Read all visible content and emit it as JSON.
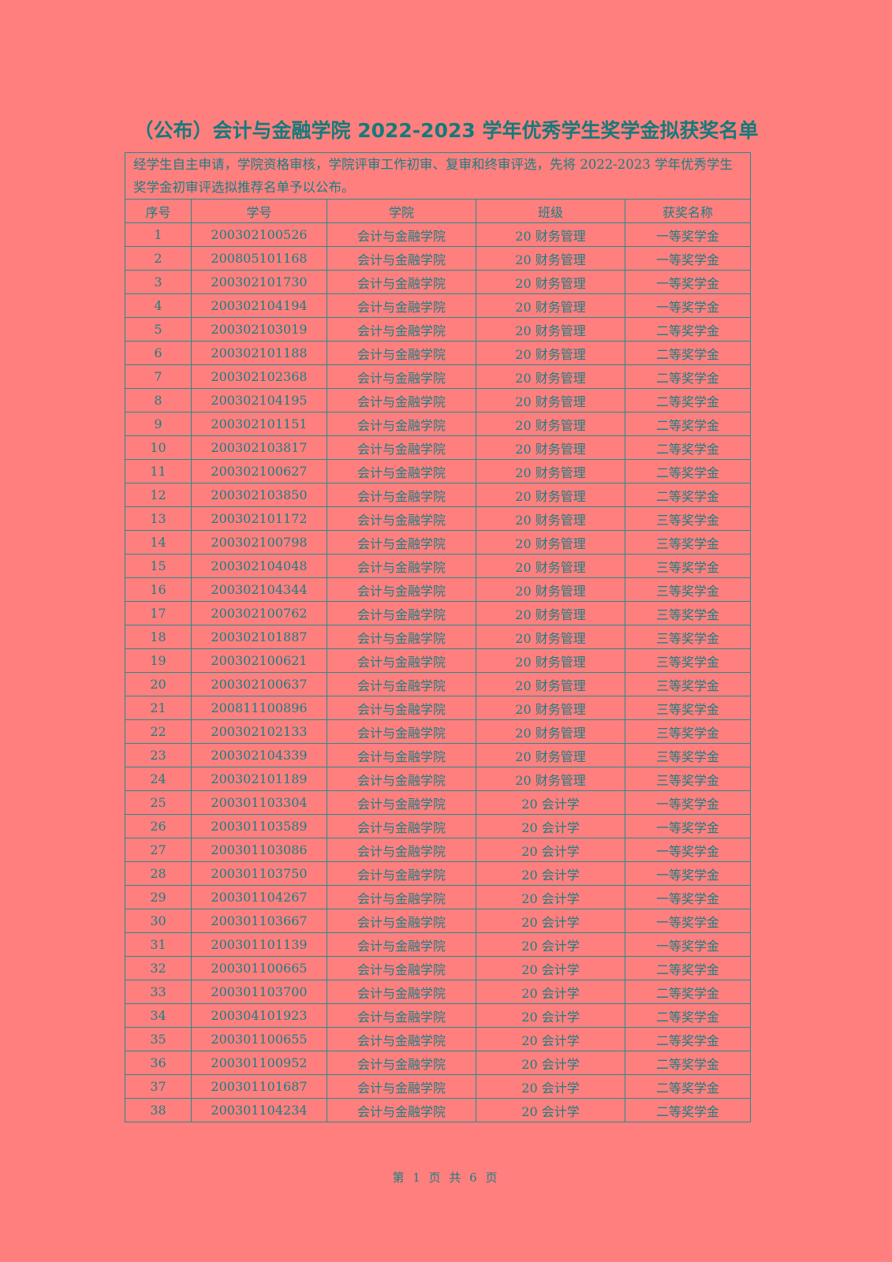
{
  "title": "（公布）会计与金融学院 2022-2023 学年优秀学生奖学金拟获奖名单",
  "intro": "经学生自主申请，学院资格审核，学院评审工作初审、复审和终审评选，先将 2022-2023 学年优秀学生奖学金初审评选拟推荐名单予以公布。",
  "columns": [
    "序号",
    "学号",
    "学院",
    "班级",
    "获奖名称"
  ],
  "rows": [
    [
      "1",
      "200302100526",
      "会计与金融学院",
      "20 财务管理",
      "一等奖学金"
    ],
    [
      "2",
      "200805101168",
      "会计与金融学院",
      "20 财务管理",
      "一等奖学金"
    ],
    [
      "3",
      "200302101730",
      "会计与金融学院",
      "20 财务管理",
      "一等奖学金"
    ],
    [
      "4",
      "200302104194",
      "会计与金融学院",
      "20 财务管理",
      "一等奖学金"
    ],
    [
      "5",
      "200302103019",
      "会计与金融学院",
      "20 财务管理",
      "二等奖学金"
    ],
    [
      "6",
      "200302101188",
      "会计与金融学院",
      "20 财务管理",
      "二等奖学金"
    ],
    [
      "7",
      "200302102368",
      "会计与金融学院",
      "20 财务管理",
      "二等奖学金"
    ],
    [
      "8",
      "200302104195",
      "会计与金融学院",
      "20 财务管理",
      "二等奖学金"
    ],
    [
      "9",
      "200302101151",
      "会计与金融学院",
      "20 财务管理",
      "二等奖学金"
    ],
    [
      "10",
      "200302103817",
      "会计与金融学院",
      "20 财务管理",
      "二等奖学金"
    ],
    [
      "11",
      "200302100627",
      "会计与金融学院",
      "20 财务管理",
      "二等奖学金"
    ],
    [
      "12",
      "200302103850",
      "会计与金融学院",
      "20 财务管理",
      "二等奖学金"
    ],
    [
      "13",
      "200302101172",
      "会计与金融学院",
      "20 财务管理",
      "三等奖学金"
    ],
    [
      "14",
      "200302100798",
      "会计与金融学院",
      "20 财务管理",
      "三等奖学金"
    ],
    [
      "15",
      "200302104048",
      "会计与金融学院",
      "20 财务管理",
      "三等奖学金"
    ],
    [
      "16",
      "200302104344",
      "会计与金融学院",
      "20 财务管理",
      "三等奖学金"
    ],
    [
      "17",
      "200302100762",
      "会计与金融学院",
      "20 财务管理",
      "三等奖学金"
    ],
    [
      "18",
      "200302101887",
      "会计与金融学院",
      "20 财务管理",
      "三等奖学金"
    ],
    [
      "19",
      "200302100621",
      "会计与金融学院",
      "20 财务管理",
      "三等奖学金"
    ],
    [
      "20",
      "200302100637",
      "会计与金融学院",
      "20 财务管理",
      "三等奖学金"
    ],
    [
      "21",
      "200811100896",
      "会计与金融学院",
      "20 财务管理",
      "三等奖学金"
    ],
    [
      "22",
      "200302102133",
      "会计与金融学院",
      "20 财务管理",
      "三等奖学金"
    ],
    [
      "23",
      "200302104339",
      "会计与金融学院",
      "20 财务管理",
      "三等奖学金"
    ],
    [
      "24",
      "200302101189",
      "会计与金融学院",
      "20 财务管理",
      "三等奖学金"
    ],
    [
      "25",
      "200301103304",
      "会计与金融学院",
      "20 会计学",
      "一等奖学金"
    ],
    [
      "26",
      "200301103589",
      "会计与金融学院",
      "20 会计学",
      "一等奖学金"
    ],
    [
      "27",
      "200301103086",
      "会计与金融学院",
      "20 会计学",
      "一等奖学金"
    ],
    [
      "28",
      "200301103750",
      "会计与金融学院",
      "20 会计学",
      "一等奖学金"
    ],
    [
      "29",
      "200301104267",
      "会计与金融学院",
      "20 会计学",
      "一等奖学金"
    ],
    [
      "30",
      "200301103667",
      "会计与金融学院",
      "20 会计学",
      "一等奖学金"
    ],
    [
      "31",
      "200301101139",
      "会计与金融学院",
      "20 会计学",
      "一等奖学金"
    ],
    [
      "32",
      "200301100665",
      "会计与金融学院",
      "20 会计学",
      "二等奖学金"
    ],
    [
      "33",
      "200301103700",
      "会计与金融学院",
      "20 会计学",
      "二等奖学金"
    ],
    [
      "34",
      "200304101923",
      "会计与金融学院",
      "20 会计学",
      "二等奖学金"
    ],
    [
      "35",
      "200301100655",
      "会计与金融学院",
      "20 会计学",
      "二等奖学金"
    ],
    [
      "36",
      "200301100952",
      "会计与金融学院",
      "20 会计学",
      "二等奖学金"
    ],
    [
      "37",
      "200301101687",
      "会计与金融学院",
      "20 会计学",
      "二等奖学金"
    ],
    [
      "38",
      "200301104234",
      "会计与金融学院",
      "20 会计学",
      "二等奖学金"
    ]
  ],
  "footer": "第 1 页 共 6 页",
  "colors": {
    "background": "#ff7f7f",
    "text": "#1b7f80"
  }
}
